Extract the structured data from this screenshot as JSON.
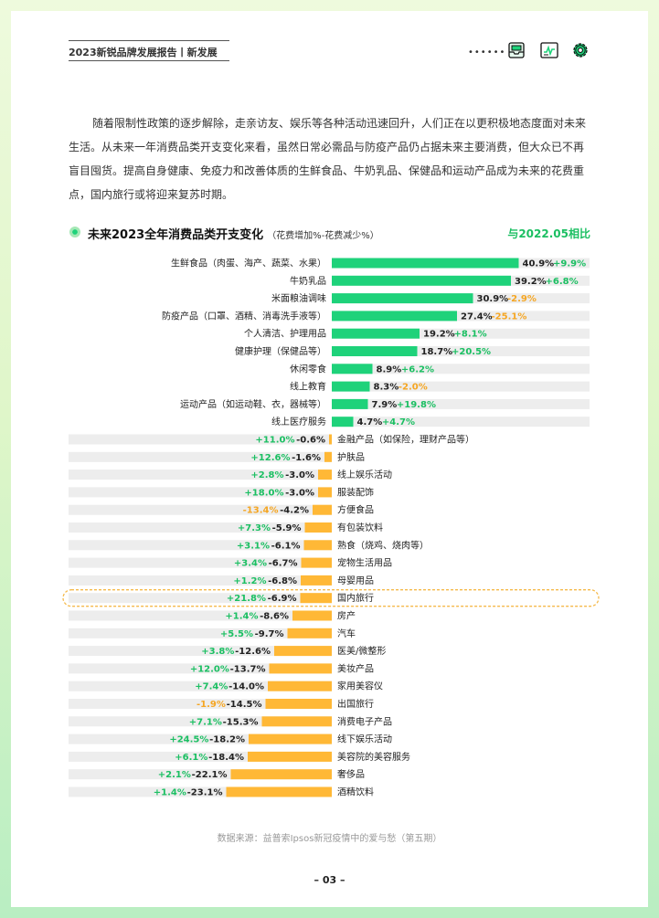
{
  "header": {
    "title": "2023新锐品牌发展报告丨新发展",
    "dots": "••••••",
    "icons": [
      "inbox-tray-icon",
      "line-chart-window-icon",
      "gear-icon"
    ]
  },
  "intro": "随着限制性政策的逐步解除，走亲访友、娱乐等各种活动迅速回升，人们正在以更积极地态度面对未来生活。从未来一年消费品类开支变化来看，虽然日常必需品与防疫产品仍占据未来主要消费，但大众已不再盲目囤货。提高自身健康、免疫力和改善体质的生鲜食品、牛奶乳品、保健品和运动产品成为未来的花费重点，国内旅行或将迎来复苏时期。",
  "chart_heading": {
    "title": "未来2023全年消费品类开支变化",
    "subtitle": "（花费增加%-花费减少%）",
    "compare_label": "与2022.05相比"
  },
  "colors": {
    "positive": "#1ed27a",
    "negative": "#ffb836",
    "track": "#ededed",
    "green_text": "#1bbf62",
    "orange_text": "#f5a623",
    "highlight": "#f5b94a"
  },
  "chart_data": {
    "type": "bar",
    "title": "未来2023全年消费品类开支变化",
    "subtitle": "（花费增加%-花费减少%）",
    "legend": "与2022.05相比",
    "items": [
      {
        "name": "生鲜食品（肉蛋、海产、蔬菜、水果）",
        "value": 40.9,
        "value_label": "40.9%",
        "change": 9.9,
        "change_label": "+9.9%"
      },
      {
        "name": "牛奶乳品",
        "value": 39.2,
        "value_label": "39.2%",
        "change": 6.8,
        "change_label": "+6.8%"
      },
      {
        "name": "米面粮油调味",
        "value": 30.9,
        "value_label": "30.9%",
        "change": -2.9,
        "change_label": "-2.9%"
      },
      {
        "name": "防疫产品（口罩、酒精、消毒洗手液等）",
        "value": 27.4,
        "value_label": "27.4%",
        "change": -25.1,
        "change_label": "-25.1%"
      },
      {
        "name": "个人清洁、护理用品",
        "value": 19.2,
        "value_label": "19.2%",
        "change": 8.1,
        "change_label": "+8.1%"
      },
      {
        "name": "健康护理（保健品等）",
        "value": 18.7,
        "value_label": "18.7%",
        "change": 20.5,
        "change_label": "+20.5%"
      },
      {
        "name": "休闲零食",
        "value": 8.9,
        "value_label": "8.9%",
        "change": 6.2,
        "change_label": "+6.2%"
      },
      {
        "name": "线上教育",
        "value": 8.3,
        "value_label": "8.3%",
        "change": -2.0,
        "change_label": "-2.0%"
      },
      {
        "name": "运动产品（如运动鞋、衣，器械等）",
        "value": 7.9,
        "value_label": "7.9%",
        "change": 19.8,
        "change_label": "+19.8%"
      },
      {
        "name": "线上医疗服务",
        "value": 4.7,
        "value_label": "4.7%",
        "change": 4.7,
        "change_label": "+4.7%"
      },
      {
        "name": "金融产品（如保险，理财产品等）",
        "value": -0.6,
        "value_label": "-0.6%",
        "change": 11.0,
        "change_label": "+11.0%"
      },
      {
        "name": "护肤品",
        "value": -1.6,
        "value_label": "-1.6%",
        "change": 12.6,
        "change_label": "+12.6%"
      },
      {
        "name": "线上娱乐活动",
        "value": -3.0,
        "value_label": "-3.0%",
        "change": 2.8,
        "change_label": "+2.8%"
      },
      {
        "name": "服装配饰",
        "value": -3.0,
        "value_label": "-3.0%",
        "change": 18.0,
        "change_label": "+18.0%"
      },
      {
        "name": "方便食品",
        "value": -4.2,
        "value_label": "-4.2%",
        "change": -13.4,
        "change_label": "-13.4%"
      },
      {
        "name": "有包装饮料",
        "value": -5.9,
        "value_label": "-5.9%",
        "change": 7.3,
        "change_label": "+7.3%"
      },
      {
        "name": "熟食（烧鸡、烧肉等）",
        "value": -6.1,
        "value_label": "-6.1%",
        "change": 3.1,
        "change_label": "+3.1%"
      },
      {
        "name": "宠物生活用品",
        "value": -6.7,
        "value_label": "-6.7%",
        "change": 3.4,
        "change_label": "+3.4%"
      },
      {
        "name": "母婴用品",
        "value": -6.8,
        "value_label": "-6.8%",
        "change": 1.2,
        "change_label": "+1.2%"
      },
      {
        "name": "国内旅行",
        "value": -6.9,
        "value_label": "-6.9%",
        "change": 21.8,
        "change_label": "+21.8%",
        "highlight": true
      },
      {
        "name": "房产",
        "value": -8.6,
        "value_label": "-8.6%",
        "change": 1.4,
        "change_label": "+1.4%"
      },
      {
        "name": "汽车",
        "value": -9.7,
        "value_label": "-9.7%",
        "change": 5.5,
        "change_label": "+5.5%"
      },
      {
        "name": "医美/微整形",
        "value": -12.6,
        "value_label": "-12.6%",
        "change": 3.8,
        "change_label": "+3.8%"
      },
      {
        "name": "美妆产品",
        "value": -13.7,
        "value_label": "-13.7%",
        "change": 12.0,
        "change_label": "+12.0%"
      },
      {
        "name": "家用美容仪",
        "value": -14.0,
        "value_label": "-14.0%",
        "change": 7.4,
        "change_label": "+7.4%"
      },
      {
        "name": "出国旅行",
        "value": -14.5,
        "value_label": "-14.5%",
        "change": -1.9,
        "change_label": "-1.9%"
      },
      {
        "name": "消费电子产品",
        "value": -15.3,
        "value_label": "-15.3%",
        "change": 7.1,
        "change_label": "+7.1%"
      },
      {
        "name": "线下娱乐活动",
        "value": -18.2,
        "value_label": "-18.2%",
        "change": 24.5,
        "change_label": "+24.5%"
      },
      {
        "name": "美容院的美容服务",
        "value": -18.4,
        "value_label": "-18.4%",
        "change": 6.1,
        "change_label": "+6.1%"
      },
      {
        "name": "奢侈品",
        "value": -22.1,
        "value_label": "-22.1%",
        "change": 2.1,
        "change_label": "+2.1%"
      },
      {
        "name": "酒精饮料",
        "value": -23.1,
        "value_label": "-23.1%",
        "change": 1.4,
        "change_label": "+1.4%"
      }
    ]
  },
  "footer": {
    "source": "数据来源：益普索Ipsos新冠疫情中的爱与愁（第五期）",
    "page_number": "– 03 –"
  }
}
